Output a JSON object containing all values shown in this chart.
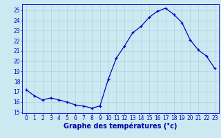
{
  "hours": [
    0,
    1,
    2,
    3,
    4,
    5,
    6,
    7,
    8,
    9,
    10,
    11,
    12,
    13,
    14,
    15,
    16,
    17,
    18,
    19,
    20,
    21,
    22,
    23
  ],
  "temps": [
    17.2,
    16.6,
    16.2,
    16.4,
    16.2,
    16.0,
    15.7,
    15.6,
    15.4,
    15.6,
    18.2,
    20.3,
    21.5,
    22.8,
    23.4,
    24.3,
    24.9,
    25.2,
    24.6,
    23.8,
    22.1,
    21.1,
    20.5,
    19.3
  ],
  "line_color": "#0000cc",
  "bg_color": "#cce8f0",
  "grid_color": "#aaccdd",
  "xlabel": "Graphe des températures (°c)",
  "ylim_bottom": 14.9,
  "ylim_top": 25.6,
  "yticks": [
    15,
    16,
    17,
    18,
    19,
    20,
    21,
    22,
    23,
    24,
    25
  ],
  "xticks": [
    0,
    1,
    2,
    3,
    4,
    5,
    6,
    7,
    8,
    9,
    10,
    11,
    12,
    13,
    14,
    15,
    16,
    17,
    18,
    19,
    20,
    21,
    22,
    23
  ],
  "tick_color": "#0000cc",
  "tick_fontsize": 5.5,
  "xlabel_fontsize": 7.0,
  "xlabel_color": "#0000aa",
  "marker_size": 3.5,
  "linewidth": 0.9
}
